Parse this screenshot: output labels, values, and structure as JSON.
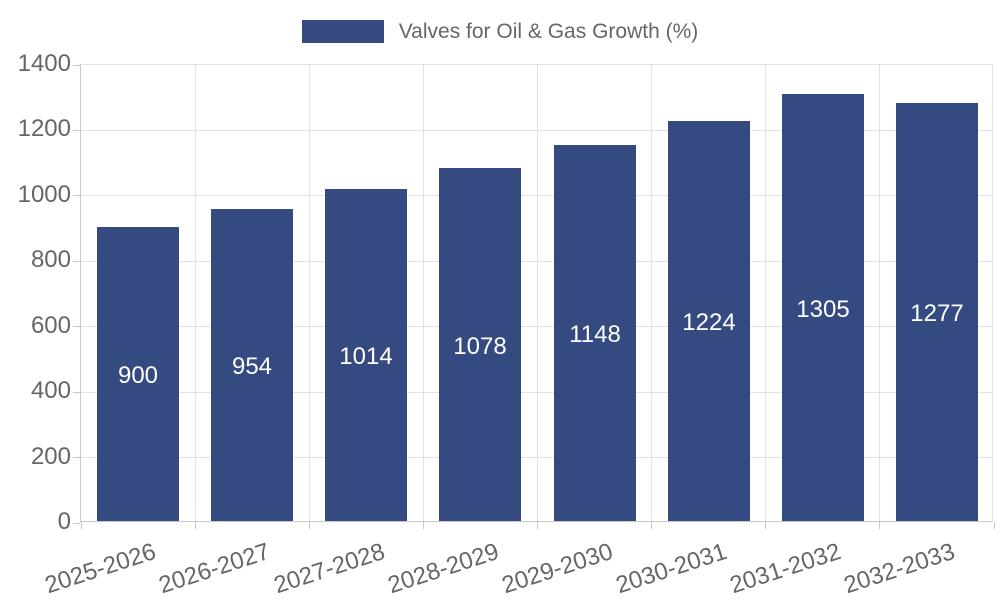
{
  "legend": {
    "label": "Valves for Oil & Gas Growth (%)"
  },
  "colors": {
    "bar": "#354a80",
    "axis_text": "#666666",
    "gridline": "#e2e2e2",
    "axis_line": "#c8c8c8",
    "value_label": "#ffffff",
    "background": "#ffffff"
  },
  "chart_data": {
    "type": "bar",
    "title": "Valves for Oil & Gas Growth (%)",
    "categories": [
      "2025-2026",
      "2026-2027",
      "2027-2028",
      "2028-2029",
      "2029-2030",
      "2030-2031",
      "2031-2032",
      "2032-2033"
    ],
    "values": [
      900,
      954,
      1014,
      1078,
      1148,
      1224,
      1305,
      1277
    ],
    "series_name": "Valves for Oil & Gas Growth (%)",
    "xlabel": "",
    "ylabel": "",
    "ylim": [
      0,
      1400
    ],
    "yticks": [
      0,
      200,
      400,
      600,
      800,
      1000,
      1200,
      1400
    ],
    "grid": true,
    "legend_position": "top-center",
    "value_labels_position": "inside-center",
    "x_label_rotation_deg": -18
  }
}
